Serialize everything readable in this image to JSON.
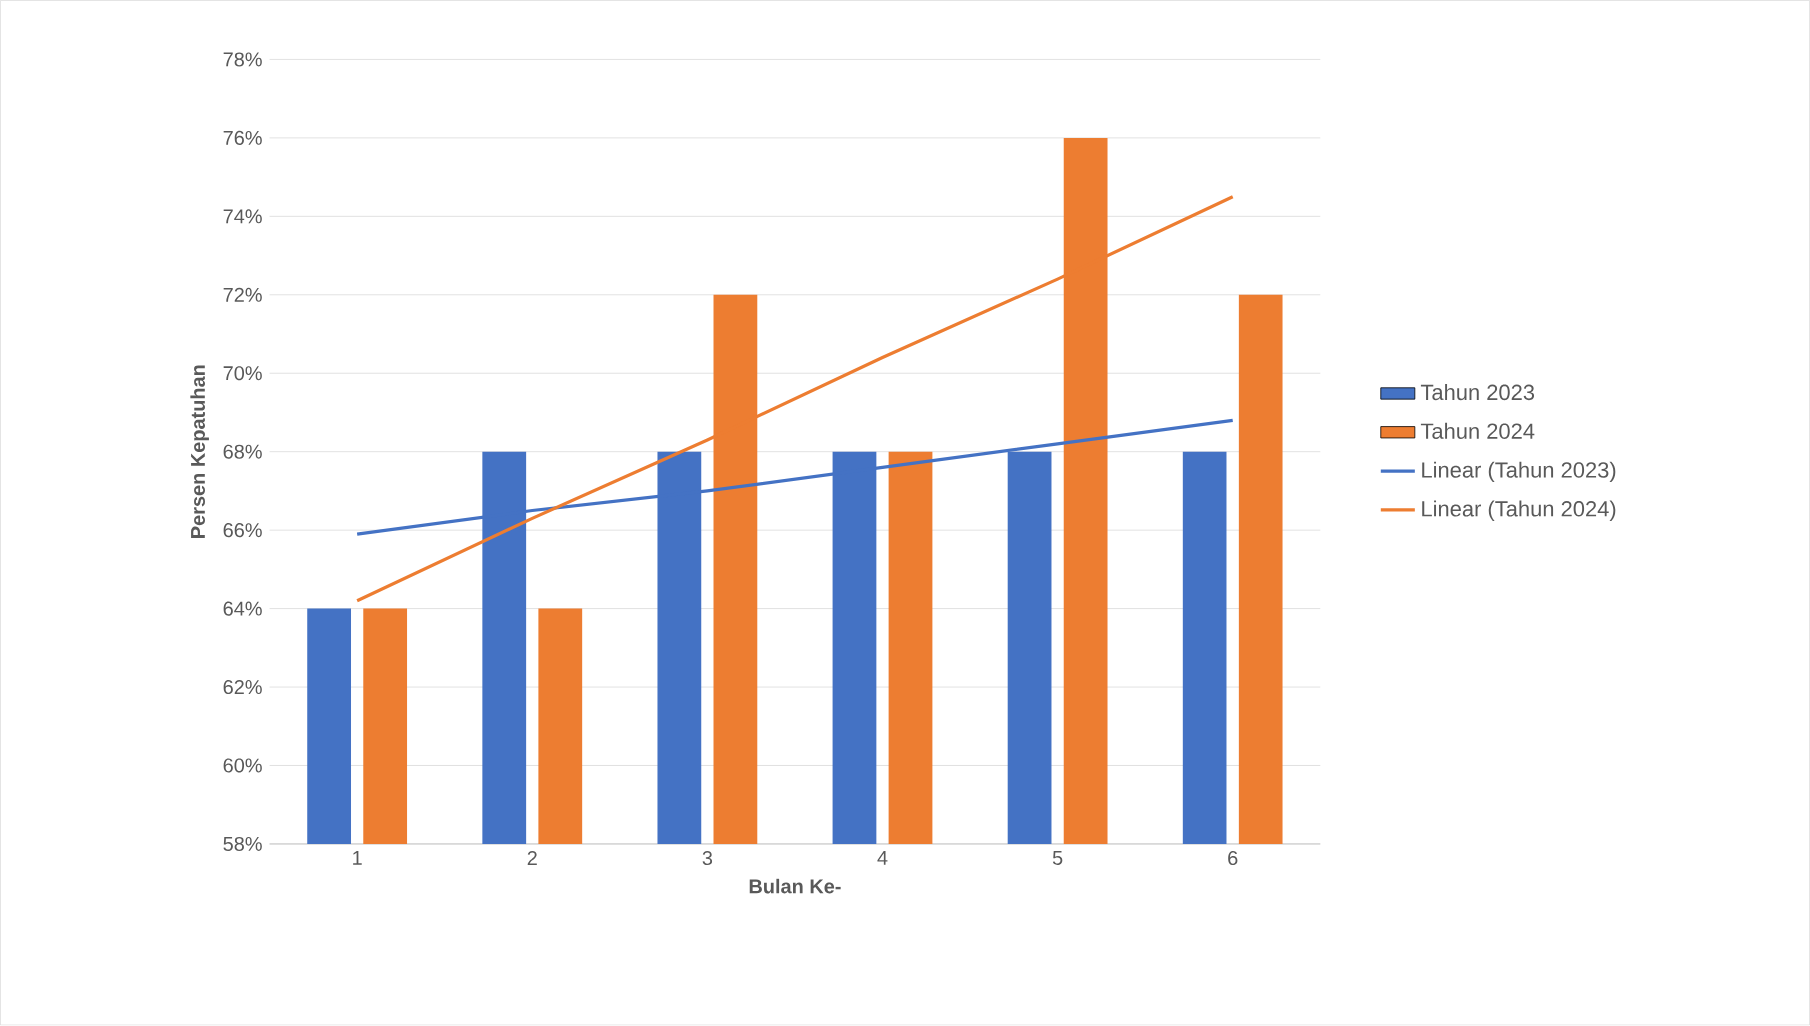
{
  "chart_data": {
    "type": "bar",
    "xlabel": "Bulan Ke-",
    "ylabel": "Persen Kepatuhan",
    "categories": [
      "1",
      "2",
      "3",
      "4",
      "5",
      "6"
    ],
    "series": [
      {
        "name": "Tahun 2023",
        "color": "#4472c4",
        "values": [
          64,
          68,
          68,
          68,
          68,
          68
        ]
      },
      {
        "name": "Tahun 2024",
        "color": "#ed7d31",
        "values": [
          64,
          64,
          72,
          68,
          76,
          72
        ]
      },
      {
        "name": "Linear (Tahun 2023)",
        "type": "line",
        "color": "#4472c4",
        "values": [
          65.9,
          66.5,
          67.0,
          67.6,
          68.2,
          68.8
        ]
      },
      {
        "name": "Linear (Tahun 2024)",
        "type": "line",
        "color": "#ed7d31",
        "values": [
          64.2,
          66.3,
          68.3,
          70.4,
          72.4,
          74.5
        ]
      }
    ],
    "ylim": [
      58,
      78
    ],
    "yticks": [
      {
        "value": 58,
        "label": "58%"
      },
      {
        "value": 60,
        "label": "60%"
      },
      {
        "value": 62,
        "label": "62%"
      },
      {
        "value": 64,
        "label": "64%"
      },
      {
        "value": 66,
        "label": "66%"
      },
      {
        "value": 68,
        "label": "68%"
      },
      {
        "value": 70,
        "label": "70%"
      },
      {
        "value": 72,
        "label": "72%"
      },
      {
        "value": 74,
        "label": "74%"
      },
      {
        "value": 76,
        "label": "76%"
      },
      {
        "value": 78,
        "label": "78%"
      }
    ],
    "grid": "y",
    "legend": "right"
  }
}
